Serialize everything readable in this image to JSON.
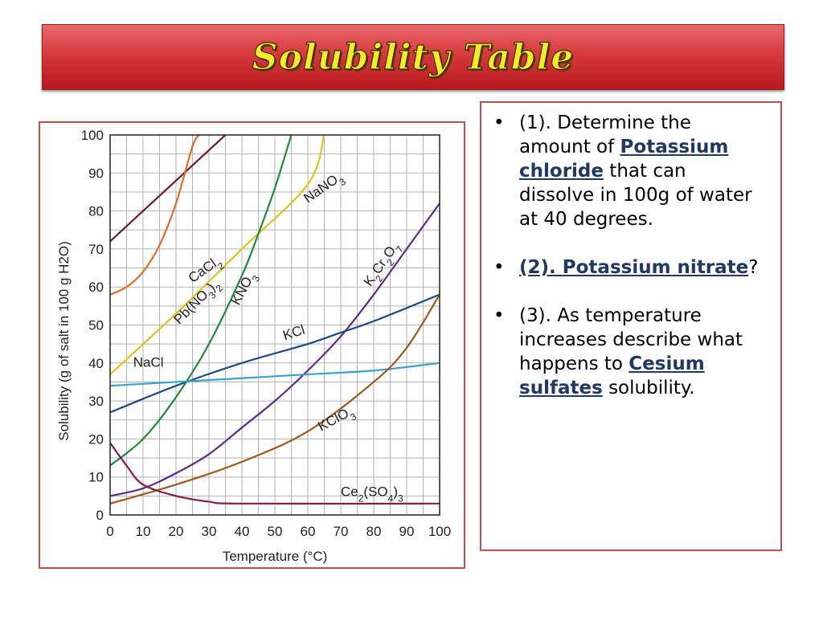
{
  "title": "Solubility Table",
  "chart_data": {
    "type": "line",
    "xlabel": "Temperature (°C)",
    "ylabel": "Solubility (g of salt in 100 g H2O)",
    "xlim": [
      0,
      100
    ],
    "ylim": [
      0,
      100
    ],
    "xticks": [
      0,
      10,
      20,
      30,
      40,
      50,
      60,
      70,
      80,
      90,
      100
    ],
    "yticks": [
      0,
      10,
      20,
      30,
      40,
      50,
      60,
      70,
      80,
      90,
      100
    ],
    "grid": true,
    "series": [
      {
        "name": "NaNO3",
        "color": "#6b1a2a",
        "points": [
          [
            0,
            72
          ],
          [
            10,
            80
          ],
          [
            20,
            88
          ],
          [
            30,
            96
          ],
          [
            35,
            100
          ]
        ]
      },
      {
        "name": "CaCl2",
        "color": "#e06a2a",
        "points": [
          [
            0,
            58
          ],
          [
            5,
            60
          ],
          [
            10,
            64
          ],
          [
            15,
            71
          ],
          [
            20,
            82
          ],
          [
            25,
            97
          ],
          [
            27,
            100
          ]
        ]
      },
      {
        "name": "Pb(NO3)2",
        "color": "#e0c21a",
        "points": [
          [
            0,
            37
          ],
          [
            20,
            53
          ],
          [
            40,
            70
          ],
          [
            60,
            87
          ],
          [
            65,
            100
          ]
        ]
      },
      {
        "name": "KNO3",
        "color": "#1f8a3a",
        "points": [
          [
            0,
            13
          ],
          [
            10,
            20
          ],
          [
            20,
            31
          ],
          [
            30,
            45
          ],
          [
            40,
            63
          ],
          [
            45,
            74
          ],
          [
            50,
            86
          ],
          [
            55,
            100
          ]
        ]
      },
      {
        "name": "K2Cr2O7",
        "color": "#5a2a8a",
        "points": [
          [
            0,
            5
          ],
          [
            10,
            7
          ],
          [
            20,
            11
          ],
          [
            30,
            16
          ],
          [
            40,
            23
          ],
          [
            50,
            30
          ],
          [
            60,
            38
          ],
          [
            70,
            47
          ],
          [
            80,
            58
          ],
          [
            90,
            70
          ],
          [
            100,
            82
          ]
        ]
      },
      {
        "name": "KCl",
        "color": "#1f4b8a",
        "points": [
          [
            0,
            27
          ],
          [
            20,
            34
          ],
          [
            40,
            40
          ],
          [
            60,
            45
          ],
          [
            70,
            48
          ],
          [
            80,
            51
          ],
          [
            100,
            58
          ]
        ]
      },
      {
        "name": "NaCl",
        "color": "#3aa0d0",
        "points": [
          [
            0,
            34
          ],
          [
            20,
            35
          ],
          [
            40,
            36
          ],
          [
            60,
            37
          ],
          [
            80,
            38
          ],
          [
            100,
            40
          ]
        ]
      },
      {
        "name": "KClO3",
        "color": "#a0581a",
        "points": [
          [
            0,
            3
          ],
          [
            20,
            8
          ],
          [
            40,
            14
          ],
          [
            60,
            22
          ],
          [
            80,
            35
          ],
          [
            90,
            44
          ],
          [
            100,
            58
          ]
        ]
      },
      {
        "name": "Ce2(SO4)3",
        "color": "#8a1a4a",
        "points": [
          [
            0,
            19
          ],
          [
            5,
            13
          ],
          [
            10,
            8
          ],
          [
            20,
            5
          ],
          [
            30,
            3.5
          ],
          [
            40,
            3
          ],
          [
            100,
            3
          ]
        ]
      }
    ]
  },
  "questions": [
    {
      "parts": [
        {
          "text": "(1). Determine the amount of ",
          "hl": false
        },
        {
          "text": "Potassium chloride",
          "hl": true
        },
        {
          "text": " that can dissolve in 100g of water at 40 degrees.",
          "hl": false
        }
      ]
    },
    {
      "parts": [
        {
          "text": "(2). Potassium nitrate",
          "hl": true
        },
        {
          "text": "?",
          "hl": false
        }
      ]
    },
    {
      "parts": [
        {
          "text": "(3). As temperature increases describe what happens to ",
          "hl": false
        },
        {
          "text": "Cesium",
          "hl": true
        },
        {
          "text": " ",
          "hl": false
        },
        {
          "text": "sulfates",
          "hl": true
        },
        {
          "text": " solubility.",
          "hl": false
        }
      ]
    }
  ]
}
